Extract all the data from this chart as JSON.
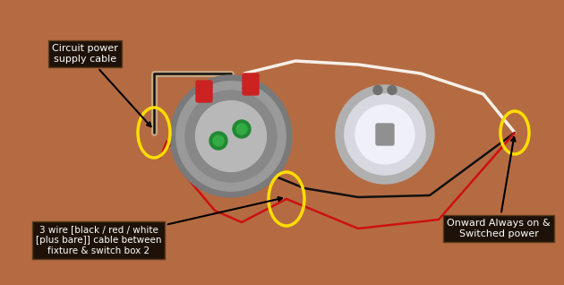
{
  "background_color": "#b56b42",
  "fig_width": 6.3,
  "fig_height": 3.18,
  "dpi": 100,
  "label1_text": "Circuit power\nsupply cable",
  "label2_text": "3 wire [black / red / white\n[plus bare]] cable between\nfixture & switch box 2",
  "label3_text": "Onward Always on &\nSwitched power",
  "wire_black_color": "#111111",
  "wire_red_color": "#cc1111",
  "wire_white_color": "#f5f0e8",
  "wire_tan_color": "#c8a882"
}
